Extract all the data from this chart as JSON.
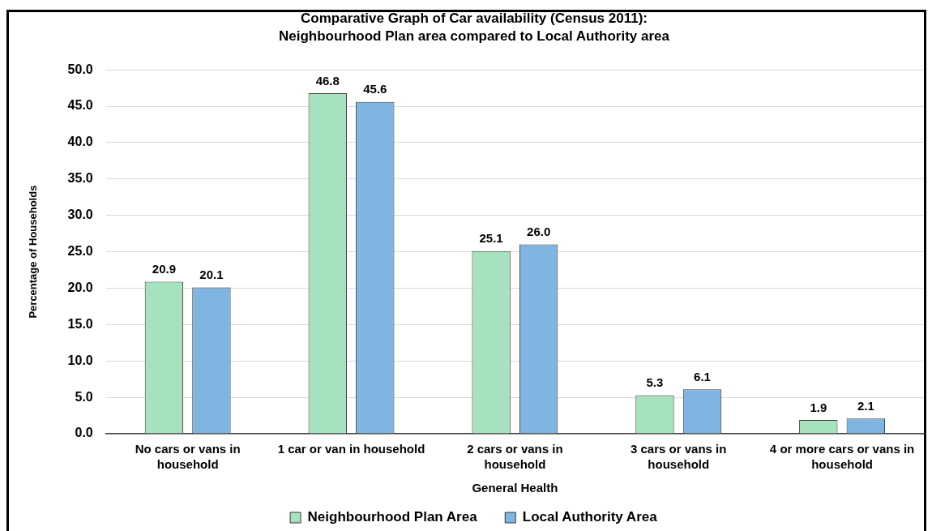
{
  "chart_data": {
    "type": "bar",
    "title": "Comparative Graph of Car availability (Census 2011):\nNeighbourhood Plan area compared to Local Authority area",
    "xlabel": "General Health",
    "ylabel": "Percentage of Households",
    "categories": [
      "No cars or vans in household",
      "1 car or van in household",
      "2 cars or vans in household",
      "3 cars or vans in household",
      "4 or more cars or vans in household"
    ],
    "series": [
      {
        "name": "Neighbourhood Plan Area",
        "color": "#a6e2bd",
        "values": [
          20.9,
          46.8,
          25.1,
          5.3,
          1.9
        ],
        "value_labels": [
          "20.9",
          "46.8",
          "25.1",
          "5.3",
          "1.9"
        ]
      },
      {
        "name": "Local Authority Area",
        "color": "#7fb5e0",
        "values": [
          20.1,
          45.6,
          26.0,
          6.1,
          2.1
        ],
        "value_labels": [
          "20.1",
          "45.6",
          "26.0",
          "6.1",
          "2.1"
        ]
      }
    ],
    "ylim": [
      0,
      50
    ],
    "yticks": [
      {
        "value": 0,
        "label": "0.0"
      },
      {
        "value": 5,
        "label": "5.0"
      },
      {
        "value": 10,
        "label": "10.0"
      },
      {
        "value": 15,
        "label": "15.0"
      },
      {
        "value": 20,
        "label": "20.0"
      },
      {
        "value": 25,
        "label": "25.0"
      },
      {
        "value": 30,
        "label": "30.0"
      },
      {
        "value": 35,
        "label": "35.0"
      },
      {
        "value": 40,
        "label": "40.0"
      },
      {
        "value": 45,
        "label": "45.0"
      },
      {
        "value": 50,
        "label": "50.0"
      }
    ],
    "grid": "y",
    "legend": "bottom"
  }
}
